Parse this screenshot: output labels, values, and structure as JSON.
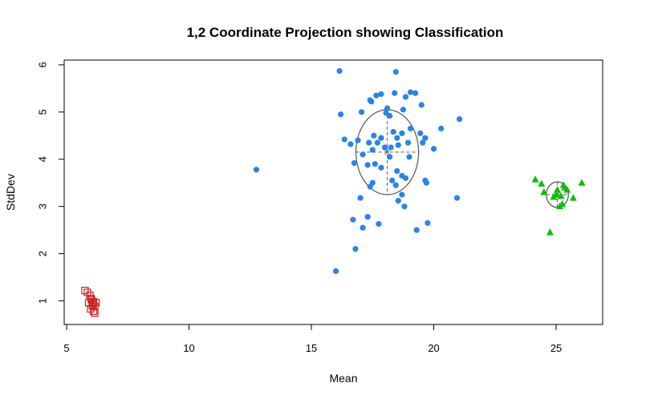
{
  "chart_data": {
    "type": "scatter",
    "title": "1,2 Coordinate Projection showing Classification",
    "xlabel": "Mean",
    "ylabel": "StdDev",
    "xlim": [
      4.9,
      26.9
    ],
    "ylim": [
      0.5,
      6.1
    ],
    "xticks": [
      5,
      10,
      15,
      20,
      25
    ],
    "yticks": [
      1,
      2,
      3,
      4,
      5,
      6
    ],
    "grid": false,
    "colors": {
      "red": "#cc2222",
      "blue": "#2b83e3",
      "green": "#11bb11",
      "ellipse": "#555555"
    },
    "series": [
      {
        "marker": "open-square",
        "color": "#cc2222",
        "points": [
          [
            5.75,
            1.22
          ],
          [
            5.85,
            1.18
          ],
          [
            5.95,
            1.12
          ],
          [
            6.02,
            1.02
          ],
          [
            6.1,
            0.98
          ],
          [
            6.2,
            0.96
          ],
          [
            5.9,
            0.96
          ],
          [
            6.05,
            0.9
          ],
          [
            6.15,
            0.88
          ],
          [
            5.98,
            0.83
          ],
          [
            6.1,
            0.78
          ],
          [
            6.15,
            0.74
          ],
          [
            6.0,
            1.05
          ],
          [
            6.08,
            0.94
          ]
        ]
      },
      {
        "marker": "filled-circle",
        "color": "#2b83e3",
        "points": [
          [
            12.75,
            3.78
          ],
          [
            16.15,
            5.87
          ],
          [
            18.45,
            5.85
          ],
          [
            16.2,
            4.95
          ],
          [
            17.05,
            5.0
          ],
          [
            17.65,
            5.35
          ],
          [
            17.85,
            5.38
          ],
          [
            18.4,
            5.4
          ],
          [
            18.85,
            5.32
          ],
          [
            19.05,
            5.42
          ],
          [
            19.25,
            5.4
          ],
          [
            19.5,
            5.15
          ],
          [
            17.4,
            5.25
          ],
          [
            17.45,
            5.22
          ],
          [
            18.1,
            5.08
          ],
          [
            18.75,
            5.05
          ],
          [
            18.05,
            4.98
          ],
          [
            18.2,
            4.92
          ],
          [
            19.05,
            4.65
          ],
          [
            19.45,
            4.55
          ],
          [
            20.3,
            4.65
          ],
          [
            21.05,
            4.85
          ],
          [
            18.7,
            4.55
          ],
          [
            18.35,
            4.58
          ],
          [
            18.5,
            4.45
          ],
          [
            17.55,
            4.5
          ],
          [
            17.85,
            4.45
          ],
          [
            17.35,
            4.35
          ],
          [
            17.7,
            4.35
          ],
          [
            18.0,
            4.25
          ],
          [
            17.5,
            4.2
          ],
          [
            18.25,
            4.25
          ],
          [
            18.55,
            4.3
          ],
          [
            18.95,
            4.35
          ],
          [
            16.35,
            4.42
          ],
          [
            16.6,
            4.32
          ],
          [
            16.9,
            4.4
          ],
          [
            17.1,
            4.1
          ],
          [
            17.3,
            3.88
          ],
          [
            17.6,
            3.9
          ],
          [
            18.2,
            4.05
          ],
          [
            19.0,
            4.05
          ],
          [
            19.55,
            4.35
          ],
          [
            19.65,
            4.45
          ],
          [
            20.0,
            4.22
          ],
          [
            16.75,
            3.92
          ],
          [
            17.85,
            3.82
          ],
          [
            18.5,
            3.75
          ],
          [
            18.7,
            3.65
          ],
          [
            18.85,
            3.6
          ],
          [
            19.65,
            3.55
          ],
          [
            19.7,
            3.5
          ],
          [
            17.0,
            3.18
          ],
          [
            17.4,
            3.42
          ],
          [
            17.5,
            3.5
          ],
          [
            18.3,
            3.55
          ],
          [
            18.45,
            3.45
          ],
          [
            18.55,
            3.12
          ],
          [
            18.7,
            3.25
          ],
          [
            20.95,
            3.18
          ],
          [
            16.7,
            2.72
          ],
          [
            17.1,
            2.55
          ],
          [
            17.3,
            2.78
          ],
          [
            17.75,
            2.63
          ],
          [
            18.8,
            3.0
          ],
          [
            19.75,
            2.65
          ],
          [
            19.3,
            2.5
          ],
          [
            16.8,
            2.1
          ],
          [
            16.0,
            1.63
          ]
        ]
      },
      {
        "marker": "filled-triangle",
        "color": "#11bb11",
        "points": [
          [
            24.15,
            3.57
          ],
          [
            24.4,
            3.48
          ],
          [
            24.5,
            3.3
          ],
          [
            24.75,
            2.45
          ],
          [
            24.9,
            3.2
          ],
          [
            25.0,
            3.25
          ],
          [
            25.05,
            3.35
          ],
          [
            25.15,
            3.0
          ],
          [
            25.2,
            3.22
          ],
          [
            25.3,
            3.45
          ],
          [
            25.35,
            3.4
          ],
          [
            25.45,
            3.35
          ],
          [
            25.7,
            3.18
          ],
          [
            26.05,
            3.5
          ],
          [
            25.25,
            3.05
          ]
        ]
      }
    ],
    "ellipses": [
      {
        "cx": 6.02,
        "cy": 0.97,
        "rx": 0.1,
        "ry": 0.07
      },
      {
        "cx": 18.1,
        "cy": 4.15,
        "rx": 1.28,
        "ry": 0.9
      },
      {
        "cx": 25.05,
        "cy": 3.25,
        "rx": 0.45,
        "ry": 0.27
      }
    ]
  }
}
